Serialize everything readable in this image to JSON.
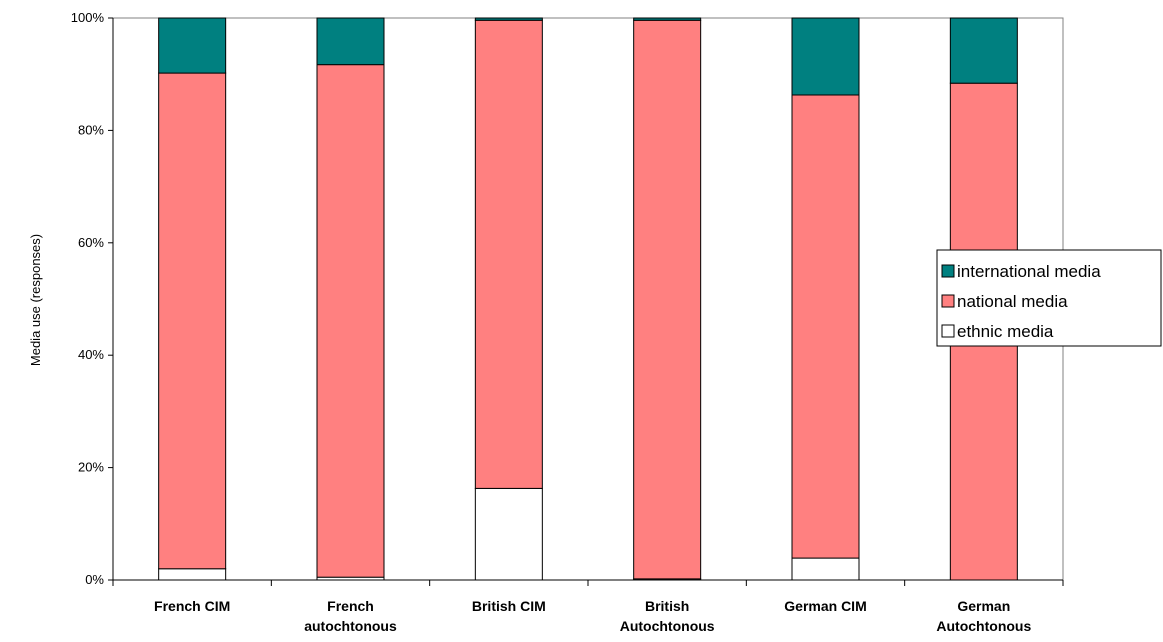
{
  "chart_data": {
    "type": "bar",
    "stacked": true,
    "percent": true,
    "categories": [
      [
        "French CIM"
      ],
      [
        "French",
        "autochtonous"
      ],
      [
        "British CIM"
      ],
      [
        "British",
        "Autochtonous"
      ],
      [
        "German CIM"
      ],
      [
        "German",
        "Autochtonous"
      ]
    ],
    "series": [
      {
        "name": "ethnic media",
        "color": "#ffffff",
        "values": [
          2.0,
          0.5,
          16.3,
          0.2,
          3.9,
          0.0
        ]
      },
      {
        "name": "national media",
        "color": "#ff8080",
        "values": [
          88.2,
          91.2,
          83.3,
          99.4,
          82.4,
          88.4
        ]
      },
      {
        "name": "international media",
        "color": "#008080",
        "values": [
          9.8,
          8.3,
          0.4,
          0.4,
          13.7,
          11.6
        ]
      }
    ],
    "ylabel": "Media use (responses)",
    "ylim": [
      0,
      100
    ],
    "yticks": [
      "0%",
      "20%",
      "40%",
      "60%",
      "80%",
      "100%"
    ],
    "legend": {
      "placement": "right",
      "order": [
        "international media",
        "national media",
        "ethnic media"
      ]
    },
    "grid": false
  }
}
